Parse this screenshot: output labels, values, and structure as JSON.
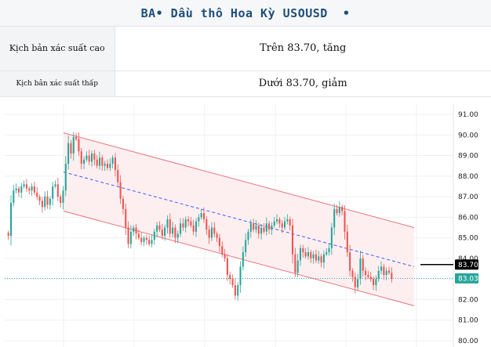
{
  "header": {
    "title": "BA• Dầu thô Hoa Kỳ USOUSD  •"
  },
  "scenarios": [
    {
      "label": "Kịch bản xác suất cao",
      "value": "Trên 83.70, tăng"
    },
    {
      "label": "Kịch bản xác suất thấp",
      "value": "Dưới 83.70, giảm"
    }
  ],
  "colors": {
    "up": "#26a69a",
    "down": "#ef5350",
    "channel_line": "#e8747c",
    "channel_fill": "#fdeced",
    "midline": "#3d5afe",
    "level_tag": "#000000",
    "price_tag": "#26a69a"
  },
  "chart_data": {
    "type": "candlestick",
    "y_ticks": [
      "91.00",
      "90.00",
      "89.00",
      "88.00",
      "87.00",
      "86.00",
      "85.00",
      "84.00",
      "83.00",
      "82.00",
      "81.00",
      "80.00"
    ],
    "ylim": [
      80.0,
      91.0
    ],
    "grid": true,
    "key_level": {
      "value": 83.7,
      "label": "83.70"
    },
    "last_price": {
      "value": 83.03,
      "label": "83.03"
    },
    "channel": {
      "upper": {
        "start": 90.1,
        "end": 85.5
      },
      "lower": {
        "start": 86.3,
        "end": 81.7
      },
      "mid": {
        "start": 88.2,
        "end": 83.6
      }
    },
    "closes": [
      85.1,
      86.7,
      87.3,
      87.4,
      87.2,
      87.5,
      87.6,
      87.4,
      87.3,
      87.5,
      87.2,
      87.0,
      86.8,
      86.5,
      87.0,
      86.6,
      86.9,
      87.5,
      87.6,
      87.0,
      86.7,
      87.3,
      88.6,
      89.6,
      89.1,
      89.9,
      89.8,
      89.2,
      88.6,
      88.8,
      89.0,
      88.7,
      89.1,
      88.8,
      88.5,
      88.9,
      88.5,
      88.6,
      88.4,
      88.6,
      88.9,
      88.3,
      87.7,
      86.9,
      86.4,
      85.5,
      84.7,
      85.3,
      85.5,
      85.2,
      85.0,
      84.8,
      85.0,
      84.9,
      84.7,
      84.9,
      85.3,
      85.6,
      85.4,
      85.1,
      85.5,
      85.9,
      85.2,
      85.5,
      85.0,
      85.2,
      85.7,
      85.5,
      85.9,
      85.8,
      85.6,
      85.3,
      85.8,
      86.0,
      86.2,
      85.9,
      85.4,
      85.0,
      85.5,
      85.2,
      85.0,
      84.6,
      84.2,
      84.0,
      83.2,
      83.0,
      82.7,
      82.2,
      82.7,
      83.6,
      84.3,
      84.9,
      85.3,
      85.7,
      85.4,
      85.6,
      85.2,
      85.5,
      85.3,
      85.7,
      85.4,
      85.6,
      85.8,
      85.9,
      85.7,
      85.5,
      85.8,
      85.9,
      85.6,
      84.2,
      83.3,
      83.9,
      84.5,
      84.3,
      84.1,
      84.3,
      84.0,
      84.2,
      83.9,
      84.1,
      83.8,
      84.2,
      84.3,
      84.5,
      85.5,
      86.4,
      86.2,
      86.5,
      86.3,
      85.3,
      84.3,
      83.4,
      83.1,
      82.6,
      83.0,
      84.0,
      83.4,
      83.2,
      83.1,
      83.0,
      82.7,
      83.0,
      83.4,
      83.6,
      83.2,
      83.4,
      83.3,
      83.0
    ]
  }
}
